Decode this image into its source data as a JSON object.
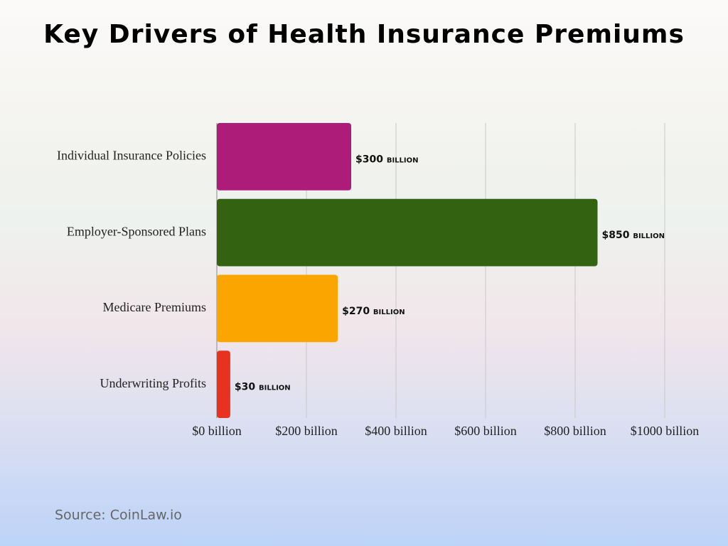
{
  "chart_data": {
    "type": "bar",
    "orientation": "horizontal",
    "title": "Key Drivers of Health Insurance Premiums",
    "categories": [
      "Individual Insurance Policies",
      "Employer-Sponsored Plans",
      "Medicare Premiums",
      "Underwriting Profits"
    ],
    "values": [
      300,
      850,
      270,
      30
    ],
    "value_labels": [
      "$300 billion",
      "$850 billion",
      "$270 billion",
      "$30 billion"
    ],
    "colors": [
      "#ad1c78",
      "#336211",
      "#fba500",
      "#e8311f"
    ],
    "xlim": [
      0,
      1000
    ],
    "xticks": [
      {
        "value": 0,
        "label": "$0 billion"
      },
      {
        "value": 200,
        "label": "$200 billion"
      },
      {
        "value": 400,
        "label": "$400 billion"
      },
      {
        "value": 600,
        "label": "$600 billion"
      },
      {
        "value": 800,
        "label": "$800 billion"
      },
      {
        "value": 1000,
        "label": "$1000 billion"
      }
    ],
    "grid": true,
    "source": "Source: CoinLaw.io"
  }
}
